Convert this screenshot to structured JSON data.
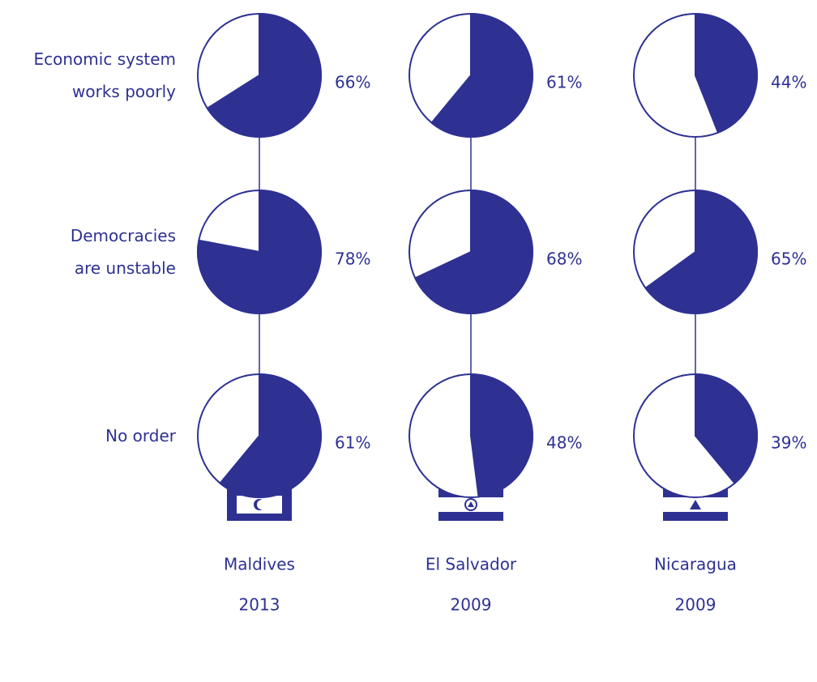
{
  "chart_data": {
    "type": "pie",
    "categories": [
      "Economic system\nworks poorly",
      "Democracies\nare unstable",
      "No order"
    ],
    "series": [
      {
        "name": "Maldives",
        "year": "2013",
        "color": "#2e3192",
        "values": [
          66,
          78,
          61
        ],
        "value_labels": [
          "66%",
          "78%",
          "61%"
        ]
      },
      {
        "name": "El Salvador",
        "year": "2009",
        "color": "#2e3192",
        "values": [
          61,
          68,
          48
        ],
        "value_labels": [
          "61%",
          "68%",
          "48%"
        ]
      },
      {
        "name": "Nicaragua",
        "year": "2009",
        "color": "#2e3192",
        "values": [
          44,
          65,
          39
        ],
        "value_labels": [
          "44%",
          "65%",
          "39%"
        ]
      }
    ]
  }
}
